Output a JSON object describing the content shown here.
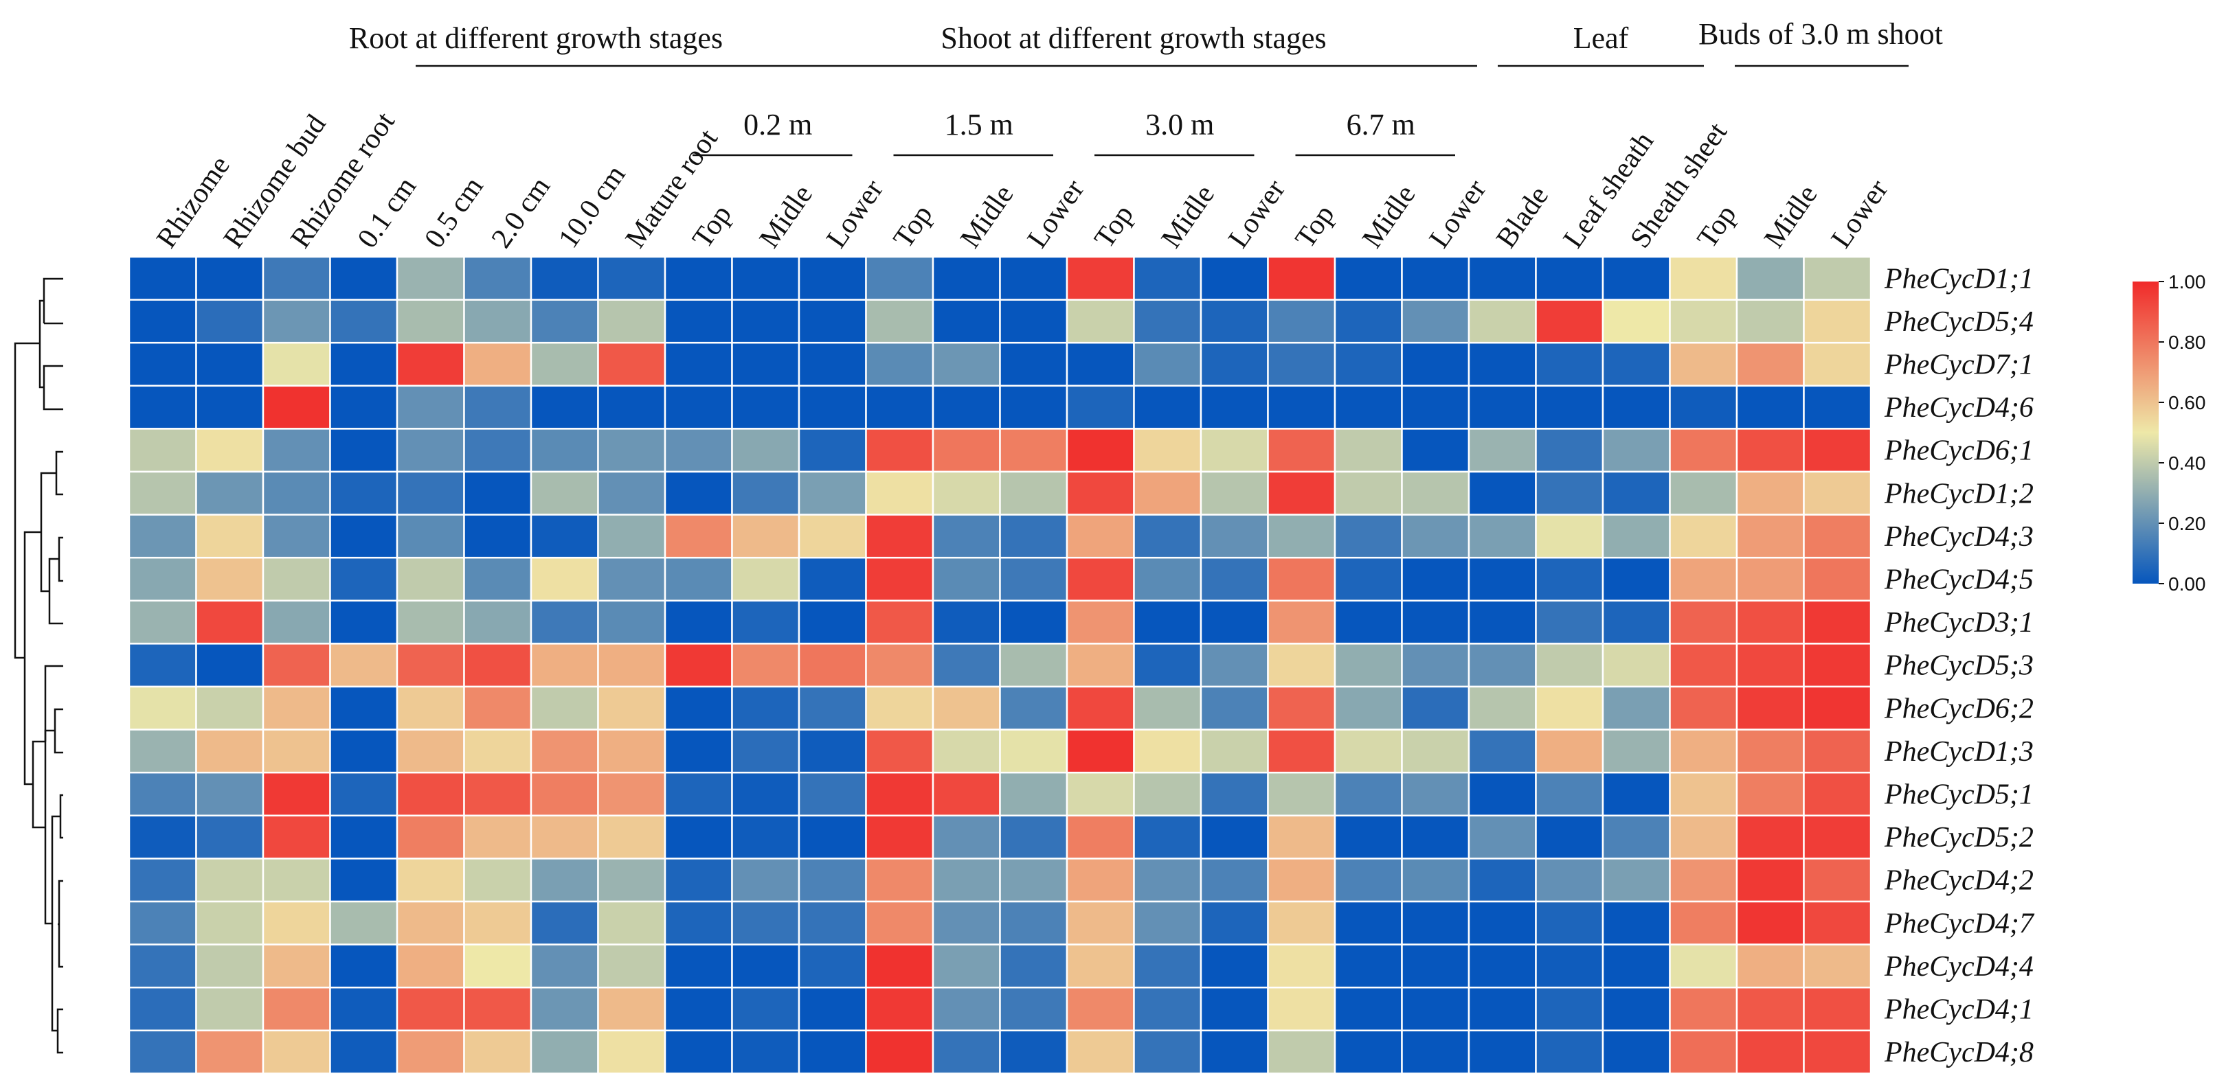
{
  "chart_data": {
    "type": "heatmap",
    "columns": [
      "Rhizome",
      "Rhizome bud",
      "Rhizome root",
      "0.1 cm",
      "0.5 cm",
      "2.0 cm",
      "10.0 cm",
      "Mature root",
      "Top",
      "Midle",
      "Lower",
      "Top",
      "Midle",
      "Lower",
      "Top",
      "Midle",
      "Lower",
      "Top",
      "Midle",
      "Lower",
      "Blade",
      "Leaf sheath",
      "Sheath sheet",
      "Top",
      "Midle",
      "Lower"
    ],
    "column_groups": [
      {
        "label": "Root at different growth stages",
        "from": 3,
        "to": 7
      },
      {
        "label": "Shoot at different growth stages",
        "from": 8,
        "to": 19
      },
      {
        "label": "Leaf",
        "from": 20,
        "to": 22
      },
      {
        "label": "Buds of 3.0 m shoot",
        "from": 23,
        "to": 25
      }
    ],
    "sub_groups": [
      {
        "label": "0.2 m",
        "from": 8,
        "to": 10
      },
      {
        "label": "1.5 m",
        "from": 11,
        "to": 13
      },
      {
        "label": "3.0 m",
        "from": 14,
        "to": 16
      },
      {
        "label": "6.7 m",
        "from": 17,
        "to": 19
      }
    ],
    "rows": [
      "PheCycD1;1",
      "PheCycD5;4",
      "PheCycD7;1",
      "PheCycD4;6",
      "PheCycD6;1",
      "PheCycD1;2",
      "PheCycD4;3",
      "PheCycD4;5",
      "PheCycD3;1",
      "PheCycD5;3",
      "PheCycD6;2",
      "PheCycD1;3",
      "PheCycD5;1",
      "PheCycD5;2",
      "PheCycD4;2",
      "PheCycD4;7",
      "PheCycD4;4",
      "PheCycD4;1",
      "PheCycD4;8"
    ],
    "values": [
      [
        0.0,
        0.0,
        0.12,
        0.0,
        0.32,
        0.15,
        0.02,
        0.05,
        0.0,
        0.0,
        0.0,
        0.15,
        0.0,
        0.0,
        0.95,
        0.05,
        0.0,
        0.97,
        0.0,
        0.0,
        0.0,
        0.0,
        0.0,
        0.52,
        0.3,
        0.4
      ],
      [
        0.0,
        0.08,
        0.22,
        0.1,
        0.35,
        0.28,
        0.15,
        0.38,
        0.0,
        0.0,
        0.0,
        0.35,
        0.0,
        0.0,
        0.42,
        0.1,
        0.05,
        0.15,
        0.05,
        0.2,
        0.42,
        0.95,
        0.5,
        0.45,
        0.4,
        0.55
      ],
      [
        0.0,
        0.0,
        0.48,
        0.0,
        0.95,
        0.65,
        0.35,
        0.88,
        0.0,
        0.0,
        0.0,
        0.18,
        0.22,
        0.0,
        0.0,
        0.18,
        0.05,
        0.1,
        0.05,
        0.0,
        0.0,
        0.05,
        0.05,
        0.62,
        0.72,
        0.55
      ],
      [
        0.0,
        0.0,
        0.98,
        0.0,
        0.2,
        0.12,
        0.0,
        0.0,
        0.0,
        0.0,
        0.0,
        0.0,
        0.0,
        0.0,
        0.05,
        0.0,
        0.0,
        0.0,
        0.0,
        0.0,
        0.0,
        0.0,
        0.0,
        0.02,
        0.0,
        0.0
      ],
      [
        0.4,
        0.52,
        0.2,
        0.0,
        0.2,
        0.12,
        0.18,
        0.22,
        0.2,
        0.28,
        0.05,
        0.9,
        0.8,
        0.78,
        0.98,
        0.55,
        0.45,
        0.85,
        0.4,
        0.0,
        0.32,
        0.1,
        0.25,
        0.8,
        0.9,
        0.95
      ],
      [
        0.38,
        0.22,
        0.18,
        0.05,
        0.1,
        0.0,
        0.35,
        0.2,
        0.0,
        0.12,
        0.25,
        0.52,
        0.45,
        0.38,
        0.92,
        0.68,
        0.38,
        0.95,
        0.4,
        0.38,
        0.0,
        0.1,
        0.05,
        0.35,
        0.65,
        0.58
      ],
      [
        0.22,
        0.55,
        0.2,
        0.0,
        0.18,
        0.0,
        0.02,
        0.3,
        0.75,
        0.62,
        0.55,
        0.95,
        0.15,
        0.1,
        0.68,
        0.1,
        0.2,
        0.3,
        0.12,
        0.22,
        0.25,
        0.48,
        0.3,
        0.55,
        0.7,
        0.78
      ],
      [
        0.28,
        0.6,
        0.4,
        0.05,
        0.4,
        0.18,
        0.52,
        0.2,
        0.18,
        0.45,
        0.02,
        0.95,
        0.18,
        0.12,
        0.92,
        0.18,
        0.1,
        0.8,
        0.05,
        0.0,
        0.0,
        0.05,
        0.0,
        0.68,
        0.7,
        0.8
      ],
      [
        0.32,
        0.92,
        0.28,
        0.0,
        0.35,
        0.28,
        0.12,
        0.18,
        0.0,
        0.05,
        0.0,
        0.88,
        0.02,
        0.0,
        0.72,
        0.0,
        0.0,
        0.72,
        0.0,
        0.0,
        0.0,
        0.1,
        0.05,
        0.85,
        0.9,
        0.96
      ],
      [
        0.05,
        0.0,
        0.85,
        0.62,
        0.85,
        0.9,
        0.65,
        0.65,
        0.96,
        0.75,
        0.8,
        0.75,
        0.12,
        0.35,
        0.65,
        0.05,
        0.2,
        0.55,
        0.3,
        0.2,
        0.2,
        0.4,
        0.45,
        0.88,
        0.92,
        0.96
      ],
      [
        0.48,
        0.42,
        0.62,
        0.0,
        0.58,
        0.75,
        0.4,
        0.58,
        0.0,
        0.05,
        0.1,
        0.55,
        0.6,
        0.15,
        0.92,
        0.35,
        0.15,
        0.85,
        0.28,
        0.08,
        0.38,
        0.52,
        0.25,
        0.85,
        0.95,
        0.97
      ],
      [
        0.32,
        0.62,
        0.6,
        0.0,
        0.62,
        0.55,
        0.72,
        0.65,
        0.0,
        0.08,
        0.02,
        0.88,
        0.45,
        0.48,
        0.98,
        0.52,
        0.42,
        0.9,
        0.45,
        0.42,
        0.1,
        0.65,
        0.32,
        0.65,
        0.78,
        0.85
      ],
      [
        0.15,
        0.2,
        0.96,
        0.05,
        0.9,
        0.88,
        0.78,
        0.72,
        0.05,
        0.02,
        0.1,
        0.96,
        0.92,
        0.3,
        0.45,
        0.38,
        0.1,
        0.38,
        0.15,
        0.2,
        0.0,
        0.15,
        0.0,
        0.6,
        0.78,
        0.9
      ],
      [
        0.02,
        0.08,
        0.92,
        0.0,
        0.78,
        0.62,
        0.62,
        0.58,
        0.0,
        0.02,
        0.0,
        0.96,
        0.2,
        0.1,
        0.78,
        0.05,
        0.0,
        0.62,
        0.0,
        0.0,
        0.2,
        0.0,
        0.15,
        0.62,
        0.95,
        0.95
      ],
      [
        0.1,
        0.42,
        0.42,
        0.0,
        0.55,
        0.42,
        0.25,
        0.32,
        0.05,
        0.2,
        0.15,
        0.75,
        0.25,
        0.25,
        0.68,
        0.2,
        0.15,
        0.65,
        0.15,
        0.18,
        0.05,
        0.2,
        0.25,
        0.72,
        0.96,
        0.85
      ],
      [
        0.15,
        0.42,
        0.55,
        0.35,
        0.62,
        0.58,
        0.08,
        0.42,
        0.05,
        0.1,
        0.1,
        0.75,
        0.2,
        0.15,
        0.62,
        0.2,
        0.05,
        0.58,
        0.0,
        0.0,
        0.0,
        0.05,
        0.0,
        0.78,
        0.97,
        0.92
      ],
      [
        0.1,
        0.4,
        0.62,
        0.0,
        0.65,
        0.5,
        0.2,
        0.4,
        0.0,
        0.0,
        0.05,
        0.98,
        0.25,
        0.1,
        0.6,
        0.1,
        0.0,
        0.52,
        0.0,
        0.0,
        0.0,
        0.02,
        0.0,
        0.48,
        0.65,
        0.62
      ],
      [
        0.08,
        0.4,
        0.75,
        0.02,
        0.88,
        0.88,
        0.22,
        0.62,
        0.0,
        0.05,
        0.0,
        0.96,
        0.2,
        0.12,
        0.75,
        0.1,
        0.0,
        0.52,
        0.0,
        0.0,
        0.0,
        0.05,
        0.0,
        0.8,
        0.88,
        0.9
      ],
      [
        0.1,
        0.72,
        0.58,
        0.02,
        0.7,
        0.58,
        0.3,
        0.52,
        0.0,
        0.02,
        0.0,
        0.98,
        0.1,
        0.02,
        0.58,
        0.1,
        0.0,
        0.4,
        0.0,
        0.0,
        0.0,
        0.05,
        0.0,
        0.82,
        0.92,
        0.92
      ]
    ],
    "color_scale": {
      "min": 0.0,
      "max": 1.0,
      "stops": [
        "#0656bd",
        "#eee8a8",
        "#f02a2a"
      ],
      "ticks": [
        "1.00",
        "0.80",
        "0.60",
        "0.40",
        "0.20",
        "0.00"
      ]
    },
    "dendrogram": "row clustering tree on the left side"
  }
}
